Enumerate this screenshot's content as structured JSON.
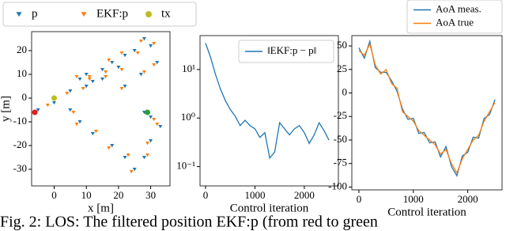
{
  "chart_data": [
    {
      "type": "scatter",
      "xlabel": "x [m]",
      "ylabel": "y [m]",
      "xlim": [
        -7,
        36
      ],
      "ylim": [
        -37,
        28
      ],
      "xticks": [
        0,
        10,
        20,
        30
      ],
      "yticks": [
        -30,
        -20,
        -10,
        0,
        10,
        20
      ],
      "legend": "upper left outside",
      "series": [
        {
          "name": "p",
          "color": "#1f77b4",
          "marker": "triangle-down",
          "x": [
            -5,
            0,
            5,
            8,
            10,
            12,
            15,
            18,
            20,
            22,
            25,
            28,
            30,
            32,
            27,
            22,
            15,
            10,
            5,
            8,
            12,
            18,
            22,
            25,
            28,
            30,
            33,
            30,
            28
          ],
          "values": [
            -5,
            -2,
            3,
            8,
            10,
            7,
            12,
            15,
            13,
            18,
            20,
            25,
            22,
            15,
            10,
            5,
            8,
            5,
            -5,
            -10,
            -15,
            -20,
            -25,
            -30,
            -25,
            -18,
            -12,
            -8,
            -6
          ]
        },
        {
          "name": "EKF:p",
          "color": "#ff7f0e",
          "marker": "triangle-down",
          "start_color": "#e41a1c",
          "end_color": "#2ca02c",
          "x": [
            -6,
            -2,
            4,
            7,
            11,
            11,
            16,
            17,
            21,
            21,
            26,
            27,
            31,
            31,
            28,
            21,
            16,
            9,
            6,
            7,
            13,
            17,
            23,
            24,
            29,
            29,
            32,
            31,
            29
          ],
          "values": [
            -6,
            -3,
            2,
            9,
            9,
            8,
            11,
            16,
            12,
            19,
            19,
            24,
            23,
            14,
            11,
            4,
            9,
            4,
            -6,
            -11,
            -14,
            -21,
            -24,
            -31,
            -24,
            -19,
            -11,
            -9,
            -6
          ]
        },
        {
          "name": "tx",
          "color": "#bcbd22",
          "marker": "circle",
          "x": [
            0
          ],
          "values": [
            0
          ]
        }
      ]
    },
    {
      "type": "line",
      "xlabel": "Control iteration",
      "log_y": true,
      "xlim": [
        -112,
        2690
      ],
      "ylim": [
        0.04,
        50
      ],
      "xticks": [
        0,
        1000,
        2000
      ],
      "yticks": [
        {
          "value": 0.1,
          "label": "10⁻¹"
        },
        {
          "value": 1,
          "label": "10⁰"
        },
        {
          "value": 10,
          "label": "10¹"
        }
      ],
      "legend": "upper right",
      "x": [
        0,
        100,
        200,
        300,
        400,
        500,
        600,
        700,
        800,
        900,
        1000,
        1100,
        1200,
        1300,
        1400,
        1500,
        1600,
        1700,
        1800,
        1900,
        2000,
        2100,
        2200,
        2300,
        2400,
        2500
      ],
      "series": [
        {
          "name": "‖EKF:p − p‖",
          "color": "#1f77b4",
          "values": [
            35,
            18,
            8,
            4,
            2.3,
            1.5,
            1.1,
            0.7,
            0.9,
            0.7,
            0.6,
            0.4,
            0.5,
            0.15,
            0.2,
            0.8,
            0.6,
            0.45,
            0.6,
            0.7,
            0.5,
            0.3,
            0.45,
            0.8,
            0.55,
            0.35
          ]
        }
      ]
    },
    {
      "type": "line",
      "xlabel": "Control iteration",
      "xlim": [
        -130,
        2630
      ],
      "ylim": [
        -103,
        61
      ],
      "xticks": [
        0,
        1000,
        2000
      ],
      "yticks": [
        -100,
        -75,
        -50,
        -25,
        0,
        25,
        50
      ],
      "legend": "upper right outside",
      "x": [
        0,
        100,
        200,
        300,
        400,
        500,
        600,
        700,
        800,
        900,
        1000,
        1100,
        1200,
        1300,
        1400,
        1500,
        1600,
        1700,
        1800,
        1900,
        2000,
        2100,
        2200,
        2300,
        2400,
        2500
      ],
      "series": [
        {
          "name": "AoA meas.",
          "color": "#1f77b4",
          "values": [
            48,
            37,
            55,
            27,
            22,
            22,
            13,
            2,
            -17,
            -28,
            -27,
            -43,
            -42,
            -53,
            -52,
            -68,
            -57,
            -78,
            -88,
            -67,
            -63,
            -47,
            -48,
            -27,
            -23,
            -7
          ]
        },
        {
          "name": "AoA true",
          "color": "#ff7f0e",
          "values": [
            45,
            40,
            52,
            30,
            20,
            25,
            10,
            5,
            -20,
            -25,
            -30,
            -40,
            -45,
            -50,
            -55,
            -65,
            -60,
            -75,
            -85,
            -70,
            -60,
            -50,
            -45,
            -30,
            -20,
            -10
          ]
        }
      ]
    }
  ],
  "caption": "Fig. 2: LOS: The filtered position EKF:p (from red to green"
}
